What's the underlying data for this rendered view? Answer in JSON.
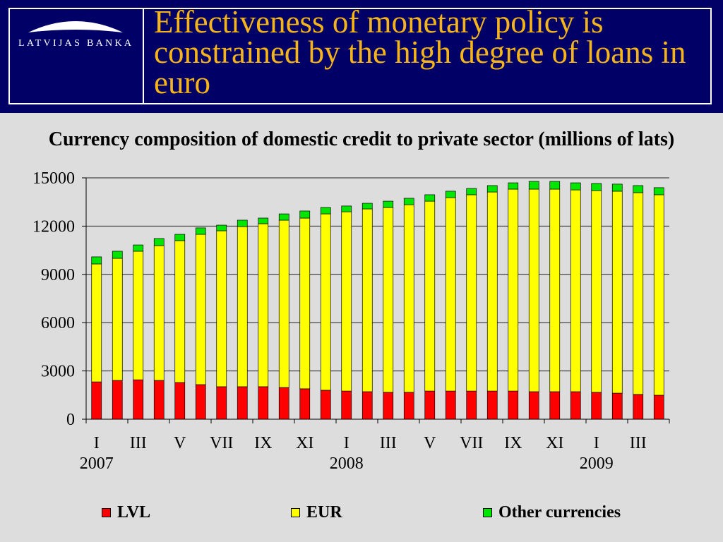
{
  "slide": {
    "background": "#DDDDDD"
  },
  "header": {
    "background": "#000066",
    "logo_text": "LATVIJAS BANKA",
    "title": "Effectiveness of monetary policy is constrained by the high degree of loans in euro",
    "title_color": "#F4B41A"
  },
  "chart_data": {
    "type": "bar",
    "stacked": true,
    "title": "Currency composition of domestic credit to private sector (millions of lats)",
    "xlabel": "",
    "ylabel": "",
    "categories": [
      "I",
      "",
      "III",
      "",
      "V",
      "",
      "VII",
      "",
      "IX",
      "",
      "XI",
      "",
      "I",
      "",
      "III",
      "",
      "V",
      "",
      "VII",
      "",
      "IX",
      "",
      "XI",
      "",
      "I",
      "",
      "III",
      ""
    ],
    "years": [
      "2007",
      "",
      "",
      "",
      "",
      "",
      "",
      "",
      "",
      "",
      "",
      "",
      "2008",
      "",
      "",
      "",
      "",
      "",
      "",
      "",
      "",
      "",
      "",
      "",
      "2009",
      "",
      "",
      ""
    ],
    "ylim": [
      0,
      15000
    ],
    "yticks": [
      0,
      3000,
      6000,
      9000,
      12000,
      15000
    ],
    "grid": true,
    "legend": "bottom",
    "series": [
      {
        "name": "LVL",
        "color": "#FF0000",
        "values": [
          2320,
          2410,
          2450,
          2410,
          2280,
          2150,
          2020,
          2020,
          2020,
          1970,
          1890,
          1800,
          1750,
          1710,
          1670,
          1670,
          1750,
          1750,
          1750,
          1750,
          1750,
          1710,
          1710,
          1710,
          1670,
          1620,
          1540,
          1490
        ]
      },
      {
        "name": "EUR",
        "color": "#FFFF00",
        "values": [
          7330,
          7590,
          7990,
          8380,
          8820,
          9340,
          9690,
          9950,
          10130,
          10400,
          10610,
          10960,
          11140,
          11360,
          11490,
          11660,
          11800,
          12020,
          12200,
          12370,
          12550,
          12590,
          12590,
          12540,
          12540,
          12550,
          12540,
          12460
        ]
      },
      {
        "name": "Other currencies",
        "color": "#00E600",
        "values": [
          440,
          440,
          390,
          440,
          390,
          400,
          350,
          400,
          350,
          390,
          440,
          400,
          360,
          350,
          390,
          400,
          400,
          400,
          390,
          400,
          390,
          480,
          480,
          440,
          440,
          440,
          440,
          440
        ]
      }
    ]
  }
}
